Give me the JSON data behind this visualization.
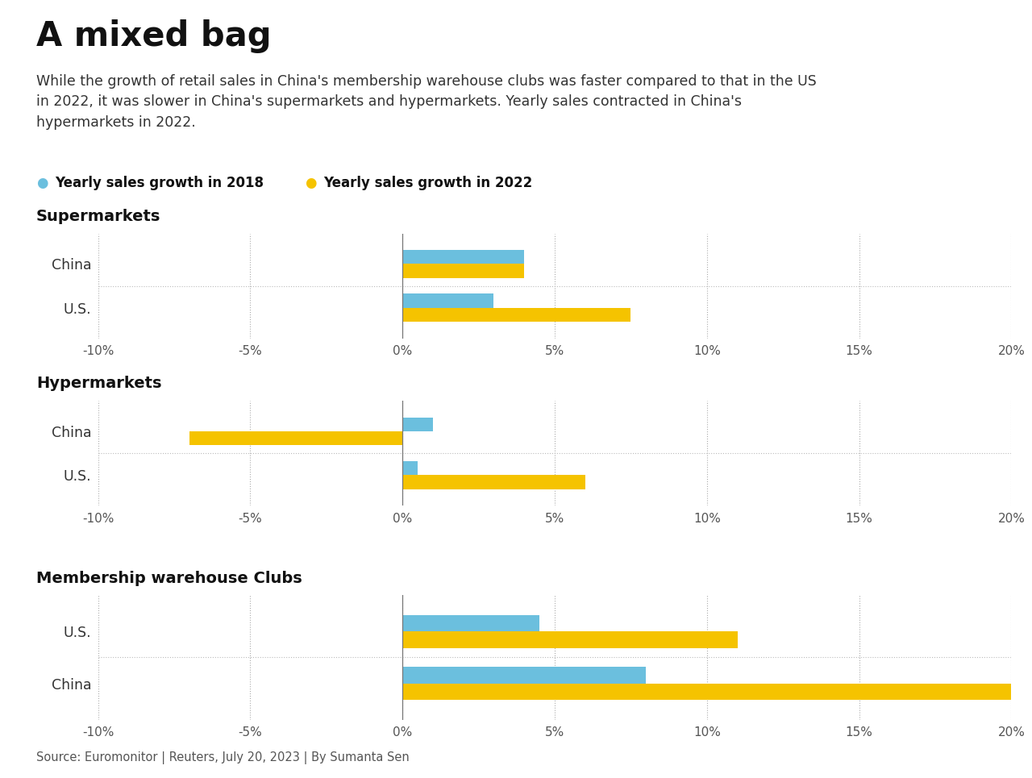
{
  "title": "A mixed bag",
  "subtitle": "While the growth of retail sales in China's membership warehouse clubs was faster compared to that in the US\nin 2022, it was slower in China's supermarkets and hypermarkets. Yearly sales contracted in China's\nhypermarkets in 2022.",
  "legend": [
    {
      "label": "Yearly sales growth in 2018",
      "color": "#6BBFDE"
    },
    {
      "label": "Yearly sales growth in 2022",
      "color": "#F5C300"
    }
  ],
  "sections": [
    {
      "title": "Supermarkets",
      "categories": [
        "China",
        "U.S."
      ],
      "values_2018": [
        4.0,
        3.0
      ],
      "values_2022": [
        4.0,
        7.5
      ]
    },
    {
      "title": "Hypermarkets",
      "categories": [
        "China",
        "U.S."
      ],
      "values_2018": [
        1.0,
        0.5
      ],
      "values_2022": [
        -7.0,
        6.0
      ]
    },
    {
      "title": "Membership warehouse Clubs",
      "categories": [
        "U.S.",
        "China"
      ],
      "values_2018": [
        4.5,
        8.0
      ],
      "values_2022": [
        11.0,
        21.0
      ]
    }
  ],
  "xlim": [
    -10,
    20
  ],
  "xticks": [
    -10,
    -5,
    0,
    5,
    10,
    15,
    20
  ],
  "xticklabels": [
    "-10%",
    "-5%",
    "0%",
    "5%",
    "10%",
    "15%",
    "20%"
  ],
  "color_2018": "#6BBFDE",
  "color_2022": "#F5C300",
  "source": "Source: Euromonitor | Reuters, July 20, 2023 | By Sumanta Sen",
  "background_color": "#FFFFFF",
  "bar_height": 0.32
}
